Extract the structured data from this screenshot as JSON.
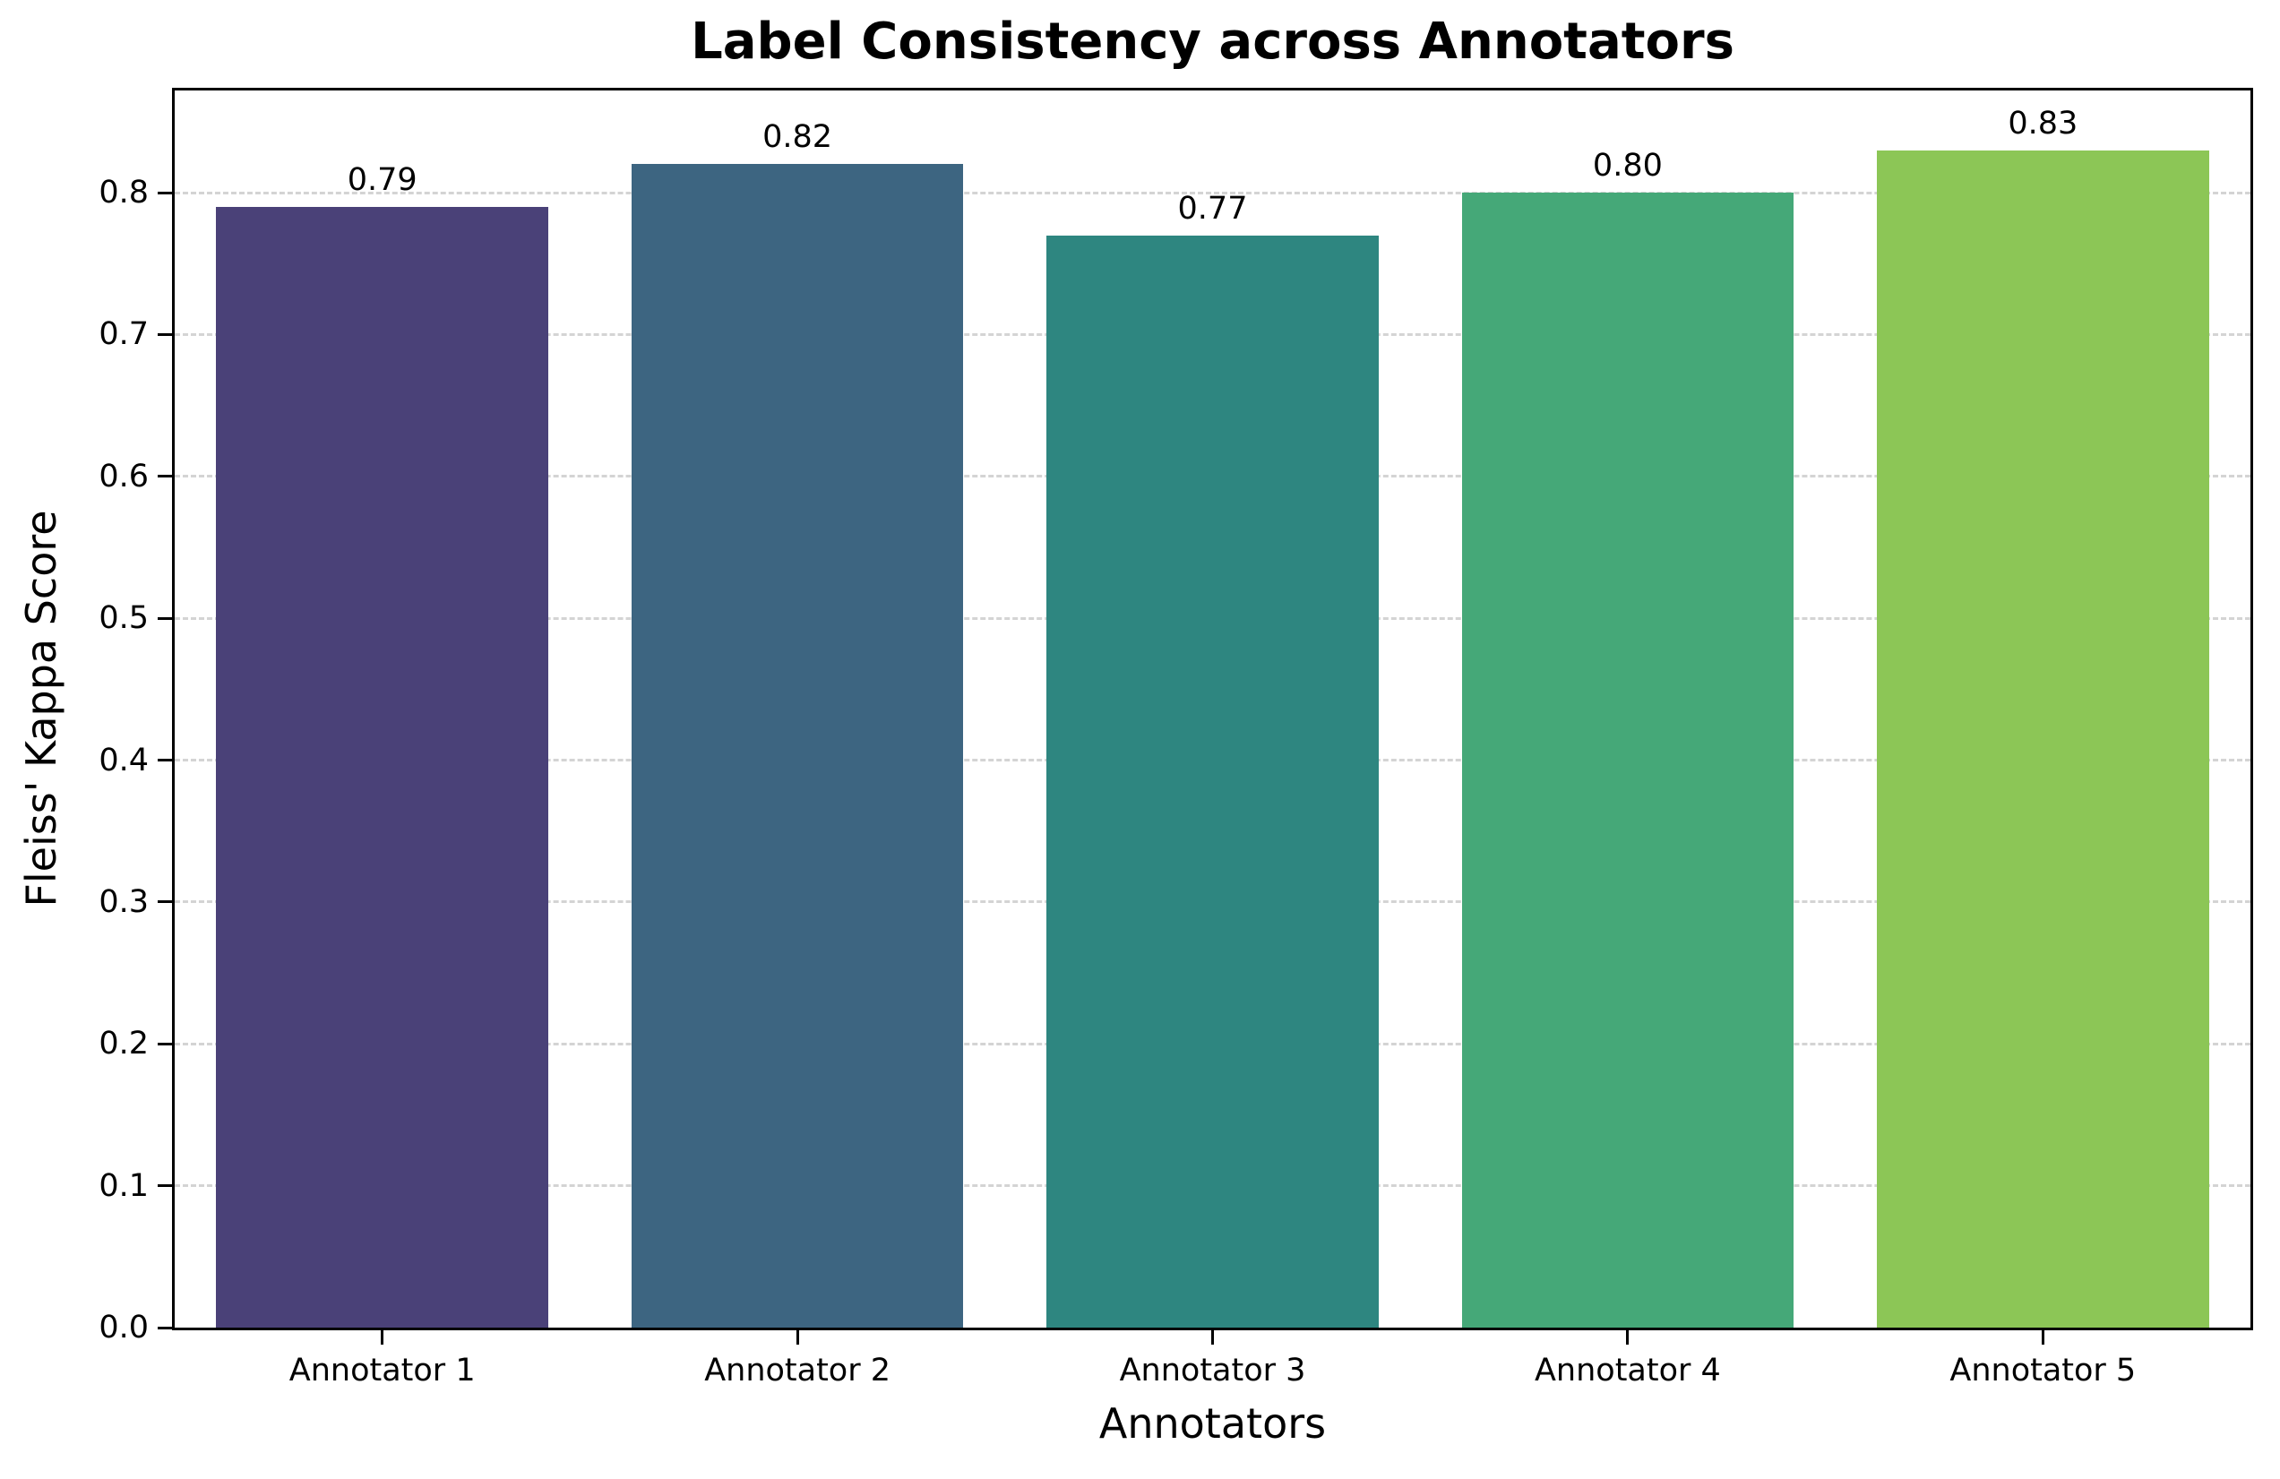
{
  "figure": {
    "title": "Label Consistency across Annotators"
  },
  "chart_data": {
    "type": "bar",
    "title": "Label Consistency across Annotators",
    "xlabel": "Annotators",
    "ylabel": "Fleiss' Kappa Score",
    "categories": [
      "Annotator 1",
      "Annotator 2",
      "Annotator 3",
      "Annotator 4",
      "Annotator 5"
    ],
    "values": [
      0.79,
      0.82,
      0.77,
      0.8,
      0.83
    ],
    "value_labels": [
      "0.79",
      "0.82",
      "0.77",
      "0.80",
      "0.83"
    ],
    "bar_colors": [
      "#4a4178",
      "#3d6581",
      "#2e8680",
      "#45a878",
      "#8cc656"
    ],
    "ylim": [
      0,
      0.872
    ],
    "yticks": [
      0.0,
      0.1,
      0.2,
      0.3,
      0.4,
      0.5,
      0.6,
      0.7,
      0.8
    ],
    "ytick_labels": [
      "0.0",
      "0.1",
      "0.2",
      "0.3",
      "0.4",
      "0.5",
      "0.6",
      "0.7",
      "0.8"
    ],
    "grid": "horizontal dashed lightgray at each ytick, behind bars",
    "legend": "none",
    "bar_width_fraction": 0.8
  }
}
